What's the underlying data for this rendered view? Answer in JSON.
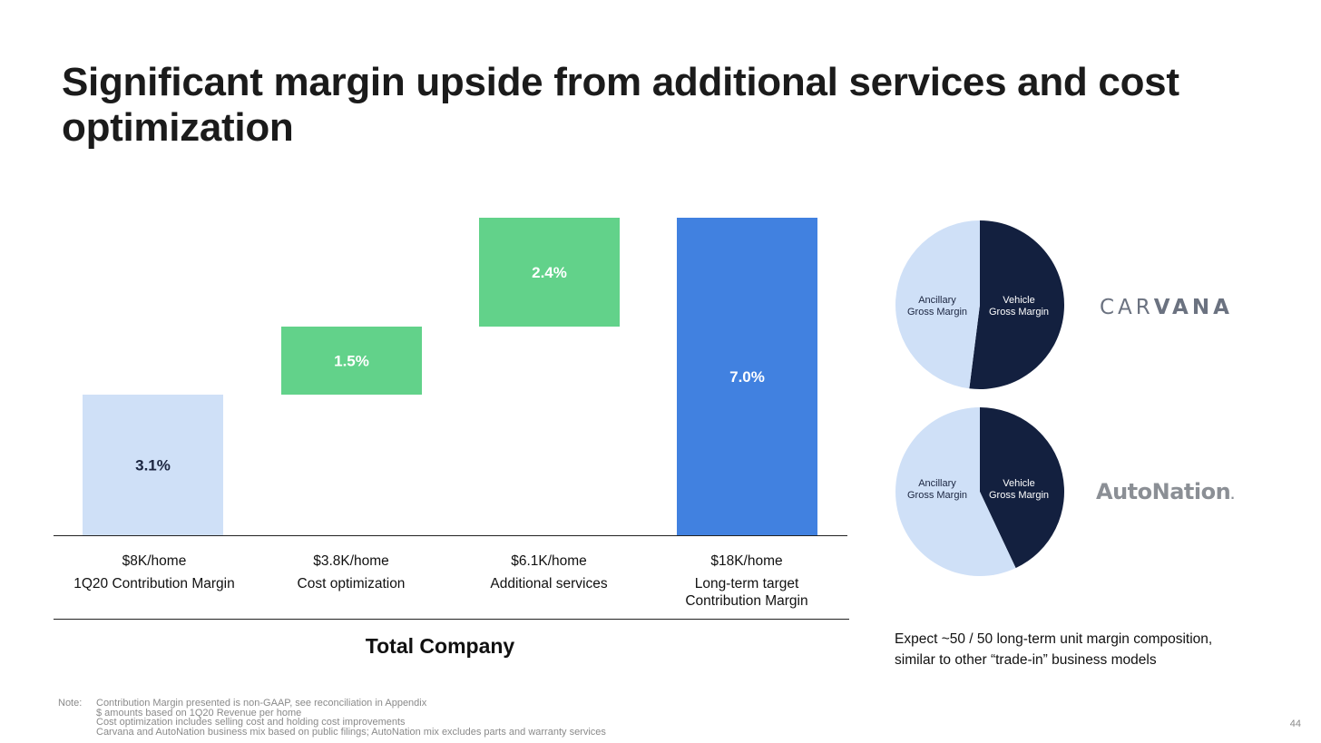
{
  "title": "Significant margin upside from additional services and cost optimization",
  "chart_data": [
    {
      "type": "bar",
      "subtype": "waterfall",
      "categories": [
        "1Q20 Contribution Margin",
        "Cost optimization",
        "Additional services",
        "Long-term target Contribution Margin"
      ],
      "amounts": [
        "$8K/home",
        "$3.8K/home",
        "$6.1K/home",
        "$18K/home"
      ],
      "values": [
        3.1,
        1.5,
        2.4,
        7.0
      ],
      "bar_kind": [
        "start",
        "increase",
        "increase",
        "total"
      ],
      "data_labels": [
        "3.1%",
        "1.5%",
        "2.4%",
        "7.0%"
      ],
      "colors": {
        "start": "#cfe0f7",
        "increase": "#62d28a",
        "total": "#4181e0",
        "label_dark": "#1b2540",
        "label_light": "#ffffff"
      },
      "ylim": [
        0,
        7.0
      ],
      "xlabel": "Total Company"
    },
    {
      "type": "pie",
      "logo": "CARVANA",
      "slices": [
        {
          "label": "Vehicle Gross Margin",
          "value": 52,
          "color": "#13203f"
        },
        {
          "label": "Ancillary Gross Margin",
          "value": 48,
          "color": "#cfe0f7"
        }
      ]
    },
    {
      "type": "pie",
      "logo": "AutoNation",
      "slices": [
        {
          "label": "Vehicle Gross Margin",
          "value": 43,
          "color": "#13203f"
        },
        {
          "label": "Ancillary Gross Margin",
          "value": 57,
          "color": "#cfe0f7"
        }
      ]
    }
  ],
  "pie_labels": {
    "ancillary_line1": "Ancillary",
    "ancillary_line2": "Gross Margin",
    "vehicle_line1": "Vehicle",
    "vehicle_line2": "Gross Margin"
  },
  "logos": {
    "carvana_light": "CAR",
    "carvana_bold": "VANA",
    "autonation": "AutoNation",
    "autonation_dot": "."
  },
  "expect_text_line1": "Expect ~50 / 50 long-term unit margin composition,",
  "expect_text_line2": "similar to other “trade-in” business models",
  "notes": {
    "label": "Note:",
    "lines": [
      "Contribution Margin presented is non-GAAP, see reconciliation in Appendix",
      "$ amounts based on 1Q20 Revenue per home",
      "Cost optimization includes selling cost and holding cost improvements",
      "Carvana and AutoNation business mix based on public filings; AutoNation mix excludes parts and warranty services"
    ]
  },
  "page_number": "44"
}
